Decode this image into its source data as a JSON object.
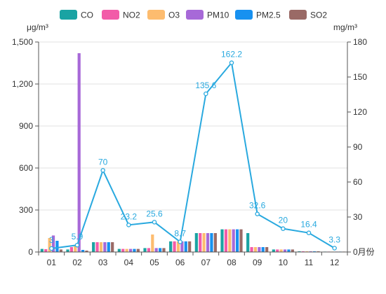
{
  "chart_data": {
    "type": "bar",
    "categories": [
      "01",
      "02",
      "03",
      "04",
      "05",
      "06",
      "07",
      "08",
      "09",
      "10",
      "11",
      "12"
    ],
    "left_axis": {
      "unit": "μg/m³",
      "min": 0,
      "max": 1500,
      "ticks": [
        0,
        300,
        600,
        900,
        1200,
        1500
      ],
      "tick_labels": [
        "0",
        "300",
        "600",
        "900",
        "1,200",
        "1,500"
      ]
    },
    "right_axis": {
      "unit": "mg/m³",
      "min": 0,
      "max": 180,
      "ticks": [
        0,
        30,
        60,
        90,
        120,
        150,
        180
      ],
      "tick_labels": [
        "0",
        "30",
        "60",
        "90",
        "120",
        "150",
        "180"
      ]
    },
    "x_axis_name": "月份",
    "grid": true,
    "legend_position": "top",
    "series": [
      {
        "name": "CO",
        "color": "#1aa3a3",
        "axis": "left",
        "type": "bar",
        "values": [
          22,
          18,
          70,
          22,
          28,
          76,
          135,
          162,
          135,
          18,
          5,
          3
        ]
      },
      {
        "name": "NO2",
        "color": "#f25ba8",
        "axis": "left",
        "type": "bar",
        "values": [
          20,
          35,
          70,
          22,
          28,
          76,
          135,
          162,
          35,
          18,
          5,
          3
        ]
      },
      {
        "name": "O3",
        "color": "#fdbc6f",
        "axis": "left",
        "type": "bar",
        "values": [
          100,
          45,
          70,
          22,
          125,
          76,
          135,
          162,
          35,
          18,
          5,
          3
        ]
      },
      {
        "name": "PM10",
        "color": "#a769d8",
        "axis": "left",
        "type": "bar",
        "values": [
          118,
          1420,
          70,
          22,
          28,
          76,
          135,
          162,
          35,
          18,
          5,
          3
        ]
      },
      {
        "name": "PM2.5",
        "color": "#1791f0",
        "axis": "left",
        "type": "bar",
        "values": [
          80,
          15,
          70,
          22,
          28,
          76,
          135,
          162,
          35,
          18,
          5,
          3
        ]
      },
      {
        "name": "SO2",
        "color": "#9a6a66",
        "axis": "left",
        "type": "bar",
        "values": [
          18,
          10,
          70,
          22,
          28,
          76,
          135,
          162,
          35,
          18,
          5,
          3
        ]
      }
    ],
    "line_series": {
      "color": "#29a9df",
      "axis": "right",
      "values": [
        3,
        5.9,
        70,
        23.2,
        25.6,
        8.7,
        135.6,
        162.2,
        32.6,
        20,
        16.4,
        3.3
      ],
      "labels": [
        "3",
        "5.9",
        "70",
        "23.2",
        "25.6",
        "8.7",
        "135.6",
        "162.2",
        "32.6",
        "20",
        "16.4",
        "3.3"
      ]
    }
  }
}
